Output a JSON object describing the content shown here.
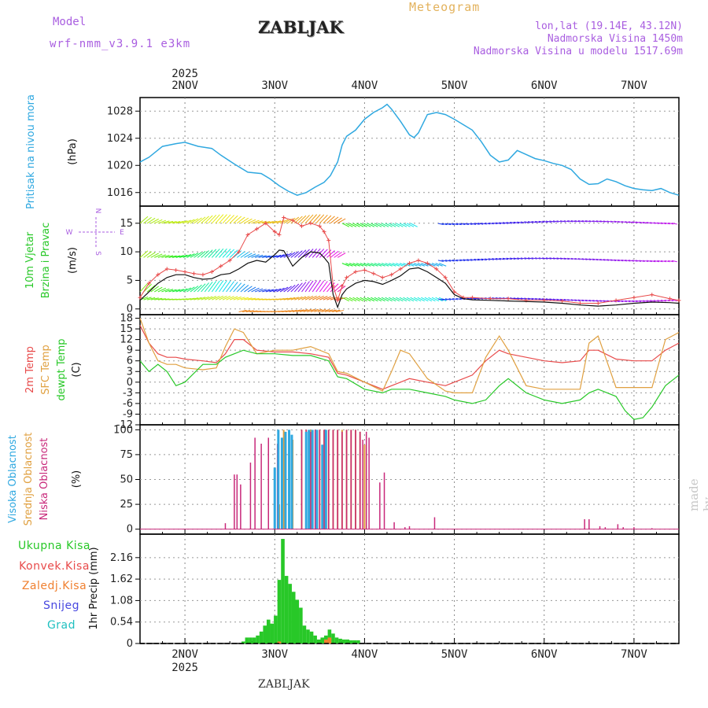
{
  "header": {
    "model_label": "Model",
    "model_name": "wrf-nmm_v3.9.1 e3km",
    "title": "ZABLJAK",
    "meteogram": "Meteogram",
    "lonlat": "lon,lat (19.14E, 43.12N)",
    "elevation": "Nadmorska Visina 1450m",
    "model_elevation": "Nadmorska Visina u modelu 1517.69m"
  },
  "footer": {
    "station": "ZABLJAK"
  },
  "watermark": "made by Angel",
  "colors": {
    "pressure": "#2fa8e0",
    "wind_speed": "#111111",
    "gust": "#e84a4a",
    "t2m": "#e84a4a",
    "tsfc": "#e0a040",
    "dewpoint": "#28c828",
    "cloud_high": "#2fa8e0",
    "cloud_mid": "#e0a040",
    "cloud_low": "#c8287a",
    "precip_total": "#28c828",
    "precip_conv": "#e84a4a",
    "precip_frz": "#f08030",
    "snow": "#4848e0",
    "hail": "#20c0c0",
    "compass": "#a95ee0"
  },
  "chart_data": [
    {
      "type": "line",
      "title": "Pritisak na nivou mora",
      "ylabel": "(hPa)",
      "xlim_days": [
        1.5,
        7.5
      ],
      "ylim": [
        1014,
        1030
      ],
      "yticks": [
        1016,
        1020,
        1024,
        1028
      ],
      "x_top_labels": [
        "2NOV",
        "3NOV",
        "4NOV",
        "5NOV",
        "6NOV",
        "7NOV"
      ],
      "x_year": "2025",
      "series": [
        {
          "name": "Pritisak",
          "x": [
            1.5,
            1.6,
            1.75,
            1.9,
            2.0,
            2.15,
            2.3,
            2.4,
            2.55,
            2.7,
            2.85,
            2.95,
            3.05,
            3.15,
            3.25,
            3.35,
            3.45,
            3.55,
            3.62,
            3.7,
            3.75,
            3.8,
            3.9,
            4.0,
            4.1,
            4.2,
            4.25,
            4.3,
            4.4,
            4.5,
            4.55,
            4.6,
            4.7,
            4.8,
            4.9,
            5.0,
            5.1,
            5.2,
            5.3,
            5.4,
            5.5,
            5.6,
            5.7,
            5.8,
            5.9,
            6.0,
            6.1,
            6.2,
            6.3,
            6.4,
            6.5,
            6.6,
            6.7,
            6.8,
            6.9,
            7.0,
            7.1,
            7.2,
            7.3,
            7.4,
            7.5
          ],
          "values": [
            1020.5,
            1021.2,
            1022.8,
            1023.2,
            1023.4,
            1022.8,
            1022.5,
            1021.5,
            1020.2,
            1019.0,
            1018.8,
            1018.0,
            1017.0,
            1016.2,
            1015.6,
            1016.0,
            1016.8,
            1017.5,
            1018.5,
            1020.5,
            1023.0,
            1024.3,
            1025.2,
            1026.8,
            1027.8,
            1028.5,
            1029.0,
            1028.3,
            1026.5,
            1024.5,
            1024.1,
            1024.8,
            1027.5,
            1027.8,
            1027.5,
            1026.8,
            1026.0,
            1025.2,
            1023.5,
            1021.5,
            1020.5,
            1020.8,
            1022.2,
            1021.6,
            1021.0,
            1020.7,
            1020.3,
            1020.0,
            1019.4,
            1018.0,
            1017.2,
            1017.3,
            1018.0,
            1017.6,
            1017.0,
            1016.6,
            1016.4,
            1016.3,
            1016.6,
            1016.0,
            1015.6
          ]
        }
      ]
    },
    {
      "type": "line",
      "title": "10m Vjetar Brzina i Pravac",
      "ylabel": "(m/s)",
      "compass": {
        "n": "N",
        "s": "S",
        "e": "E",
        "w": "W"
      },
      "xlim_days": [
        1.5,
        7.5
      ],
      "ylim": [
        -1,
        18
      ],
      "yticks": [
        0,
        5,
        10,
        15
      ],
      "series": [
        {
          "name": "Brzina",
          "x": [
            1.5,
            1.6,
            1.7,
            1.8,
            1.9,
            2.0,
            2.1,
            2.2,
            2.3,
            2.4,
            2.5,
            2.6,
            2.7,
            2.8,
            2.9,
            3.0,
            3.05,
            3.1,
            3.2,
            3.3,
            3.4,
            3.5,
            3.55,
            3.6,
            3.65,
            3.7,
            3.75,
            3.8,
            3.9,
            4.0,
            4.1,
            4.2,
            4.3,
            4.4,
            4.5,
            4.6,
            4.7,
            4.8,
            4.9,
            5.0,
            5.1,
            5.2,
            5.4,
            5.6,
            5.8,
            6.0,
            6.2,
            6.4,
            6.6,
            6.8,
            7.0,
            7.2,
            7.4,
            7.5
          ],
          "values": [
            1.5,
            3.0,
            4.5,
            5.5,
            6.0,
            6.0,
            5.5,
            5.2,
            5.3,
            6.0,
            6.2,
            7.0,
            8.0,
            8.5,
            8.2,
            9.5,
            10.3,
            10.2,
            7.5,
            9.0,
            10.0,
            9.8,
            9.0,
            8.0,
            2.5,
            0.3,
            2.5,
            3.5,
            4.5,
            5.0,
            4.8,
            4.3,
            5.0,
            5.8,
            7.0,
            7.2,
            6.5,
            5.5,
            4.5,
            2.5,
            1.8,
            1.6,
            1.5,
            1.4,
            1.3,
            1.2,
            1.0,
            0.7,
            0.5,
            0.7,
            1.0,
            1.2,
            1.1,
            1.0
          ]
        },
        {
          "name": "Udari",
          "x": [
            1.5,
            1.6,
            1.7,
            1.8,
            1.9,
            2.0,
            2.1,
            2.2,
            2.3,
            2.4,
            2.5,
            2.6,
            2.7,
            2.8,
            2.9,
            3.0,
            3.05,
            3.1,
            3.2,
            3.3,
            3.4,
            3.5,
            3.55,
            3.6,
            3.65,
            3.7,
            3.75,
            3.8,
            3.9,
            4.0,
            4.1,
            4.2,
            4.3,
            4.4,
            4.5,
            4.6,
            4.7,
            4.8,
            4.9,
            5.0,
            5.1,
            5.2,
            5.4,
            5.6,
            5.8,
            6.0,
            6.2,
            6.4,
            6.6,
            6.8,
            7.0,
            7.2,
            7.4,
            7.5
          ],
          "values": [
            2.0,
            4.5,
            6.0,
            7.0,
            6.8,
            6.5,
            6.2,
            6.0,
            6.5,
            7.5,
            8.5,
            10.0,
            13.0,
            14.0,
            15.0,
            13.5,
            13.0,
            16.0,
            15.5,
            14.5,
            15.0,
            14.5,
            13.5,
            12.0,
            4.0,
            1.5,
            4.0,
            5.5,
            6.5,
            6.8,
            6.2,
            5.5,
            6.0,
            7.0,
            8.0,
            8.5,
            8.0,
            7.0,
            5.5,
            3.0,
            2.0,
            2.0,
            1.8,
            1.8,
            1.5,
            1.5,
            1.4,
            1.0,
            1.0,
            1.5,
            2.0,
            2.5,
            1.8,
            1.5
          ]
        }
      ]
    },
    {
      "type": "line",
      "title": "2m Temp / SFC Temp / dewpt Temp",
      "ylabel": "(C)",
      "xlim_days": [
        1.5,
        7.5
      ],
      "ylim": [
        -12,
        19
      ],
      "yticks": [
        -12,
        -9,
        -6,
        -3,
        0,
        3,
        6,
        9,
        12,
        15,
        18
      ],
      "legend": [
        "2m Temp",
        "SFC Temp",
        "dewpt Temp"
      ],
      "series": [
        {
          "name": "2m Temp",
          "x": [
            1.5,
            1.6,
            1.7,
            1.8,
            1.9,
            2.0,
            2.2,
            2.35,
            2.45,
            2.55,
            2.65,
            2.8,
            3.0,
            3.2,
            3.4,
            3.6,
            3.7,
            3.8,
            4.0,
            4.2,
            4.3,
            4.5,
            4.7,
            4.9,
            5.0,
            5.2,
            5.35,
            5.5,
            5.6,
            5.8,
            6.0,
            6.2,
            6.4,
            6.5,
            6.6,
            6.8,
            7.0,
            7.2,
            7.35,
            7.5
          ],
          "values": [
            16,
            11,
            8,
            7,
            7,
            6.5,
            6,
            5.5,
            8,
            12,
            12,
            9,
            8.5,
            8.5,
            8,
            7,
            2.5,
            2,
            0,
            -2,
            -1,
            1,
            0,
            -1,
            0,
            2,
            6,
            9,
            8,
            7,
            6,
            5.5,
            6,
            9,
            9,
            6.5,
            6,
            6,
            9,
            11
          ]
        },
        {
          "name": "SFC Temp",
          "x": [
            1.5,
            1.6,
            1.7,
            1.8,
            1.9,
            2.0,
            2.2,
            2.35,
            2.45,
            2.55,
            2.65,
            2.8,
            3.0,
            3.2,
            3.4,
            3.6,
            3.7,
            3.8,
            4.0,
            4.2,
            4.3,
            4.4,
            4.5,
            4.7,
            4.9,
            5.0,
            5.2,
            5.35,
            5.5,
            5.6,
            5.8,
            6.0,
            6.2,
            6.4,
            6.5,
            6.6,
            6.8,
            7.0,
            7.2,
            7.35,
            7.5
          ],
          "values": [
            18,
            11,
            6,
            5,
            5,
            4,
            3.5,
            4,
            10,
            15,
            14,
            8,
            9,
            9,
            10,
            8,
            3,
            2.5,
            0,
            -2.5,
            3,
            9,
            8,
            1,
            -2.5,
            -3,
            -3,
            7,
            13,
            9,
            -1,
            -2,
            -2,
            -2,
            11,
            13,
            -1.5,
            -1.5,
            -1.5,
            12,
            14
          ]
        },
        {
          "name": "dewpt Temp",
          "x": [
            1.5,
            1.6,
            1.7,
            1.8,
            1.9,
            2.0,
            2.2,
            2.35,
            2.45,
            2.55,
            2.65,
            2.8,
            3.0,
            3.2,
            3.4,
            3.6,
            3.7,
            3.8,
            4.0,
            4.2,
            4.3,
            4.5,
            4.7,
            4.9,
            5.0,
            5.2,
            5.35,
            5.5,
            5.6,
            5.8,
            6.0,
            6.2,
            6.4,
            6.5,
            6.6,
            6.8,
            6.9,
            7.0,
            7.1,
            7.2,
            7.35,
            7.5
          ],
          "values": [
            6,
            3,
            5,
            3,
            -1,
            0,
            5,
            5,
            7,
            8,
            9,
            8,
            8,
            7.5,
            7.5,
            6,
            1.5,
            1,
            -2,
            -3,
            -2,
            -2,
            -3,
            -4,
            -5,
            -6,
            -5,
            -1,
            1,
            -3,
            -5,
            -6,
            -5,
            -3,
            -2,
            -4,
            -8,
            -10.5,
            -10,
            -7,
            -1,
            2
          ]
        }
      ]
    },
    {
      "type": "bar",
      "title": "Visoka / Srednja / Niska Oblacnost",
      "ylabel": "(%)",
      "xlim_days": [
        1.5,
        7.5
      ],
      "ylim": [
        -5,
        105
      ],
      "yticks": [
        0,
        25,
        50,
        75,
        100
      ],
      "legend": [
        "Visoka Oblacnost",
        "Srednja Oblacnost",
        "Niska Oblacnost"
      ],
      "series": [
        {
          "name": "Niska",
          "x": [
            2.45,
            2.55,
            2.58,
            2.62,
            2.73,
            2.78,
            2.85,
            2.93,
            3.0,
            3.03,
            3.3,
            3.35,
            3.4,
            3.45,
            3.5,
            3.55,
            3.6,
            3.65,
            3.7,
            3.75,
            3.8,
            3.85,
            3.9,
            3.95,
            3.98,
            4.02,
            4.05,
            4.17,
            4.22,
            4.33,
            4.45,
            4.5,
            4.78,
            6.45,
            6.5,
            6.62,
            6.68,
            6.82,
            6.88,
            7.0,
            7.2
          ],
          "values": [
            6,
            55,
            55,
            45,
            67,
            92,
            86,
            92,
            58,
            86,
            100,
            100,
            98,
            100,
            100,
            100,
            100,
            100,
            100,
            98,
            100,
            100,
            100,
            98,
            90,
            98,
            92,
            47,
            57,
            7,
            2,
            3,
            12,
            10,
            10,
            3,
            2,
            5,
            2,
            2,
            1
          ]
        },
        {
          "name": "Srednja",
          "x": [
            3.0,
            3.05,
            3.1,
            3.2,
            3.3,
            3.35,
            3.4,
            3.5,
            3.55,
            3.6,
            3.65,
            3.7,
            3.75,
            3.8,
            3.85,
            3.9,
            3.95,
            4.0
          ],
          "values": [
            62,
            25,
            100,
            90,
            100,
            100,
            100,
            100,
            100,
            100,
            100,
            100,
            100,
            100,
            100,
            100,
            98,
            85
          ]
        },
        {
          "name": "Visoka",
          "x": [
            3.0,
            3.04,
            3.08,
            3.12,
            3.16,
            3.19,
            3.35,
            3.38,
            3.42,
            3.47,
            3.53,
            3.57
          ],
          "values": [
            62,
            100,
            92,
            98,
            100,
            95,
            98,
            100,
            100,
            100,
            85,
            100
          ]
        }
      ]
    },
    {
      "type": "bar",
      "title": "1hr Precip",
      "ylabel": "1hr Precip (mm)",
      "xlim_days": [
        1.5,
        7.5
      ],
      "ylim": [
        0,
        2.75
      ],
      "yticks": [
        0,
        0.54,
        1.08,
        1.62,
        2.16
      ],
      "ytick_labels": [
        "0",
        "0.54",
        "1.08",
        "1.62",
        "2.16"
      ],
      "x_bottom_labels": [
        "2NOV",
        "3NOV",
        "4NOV",
        "5NOV",
        "6NOV",
        "7NOV"
      ],
      "x_year": "2025",
      "legend": [
        "Ukupna Kisa",
        "Konvek.Kisa",
        "Zaledj.Kisa",
        "Snijeg",
        "Grad"
      ],
      "series": [
        {
          "name": "Ukupna Kisa",
          "x": [
            2.65,
            2.69,
            2.73,
            2.77,
            2.81,
            2.85,
            2.89,
            2.93,
            2.97,
            3.01,
            3.05,
            3.09,
            3.13,
            3.17,
            3.21,
            3.25,
            3.29,
            3.33,
            3.37,
            3.41,
            3.45,
            3.49,
            3.53,
            3.57,
            3.61,
            3.65,
            3.69,
            3.73,
            3.77,
            3.81,
            3.85,
            3.89,
            3.93
          ],
          "values": [
            0.05,
            0.15,
            0.15,
            0.15,
            0.2,
            0.3,
            0.45,
            0.6,
            0.5,
            0.7,
            1.6,
            2.63,
            1.7,
            1.5,
            1.3,
            1.1,
            0.9,
            0.45,
            0.35,
            0.3,
            0.2,
            0.1,
            0.15,
            0.2,
            0.35,
            0.25,
            0.15,
            0.12,
            0.1,
            0.1,
            0.08,
            0.08,
            0.08
          ]
        },
        {
          "name": "Konvek.Kisa",
          "x": [
            3.05,
            3.57,
            3.61
          ],
          "values": [
            0.05,
            0.1,
            0.15
          ]
        }
      ]
    }
  ]
}
